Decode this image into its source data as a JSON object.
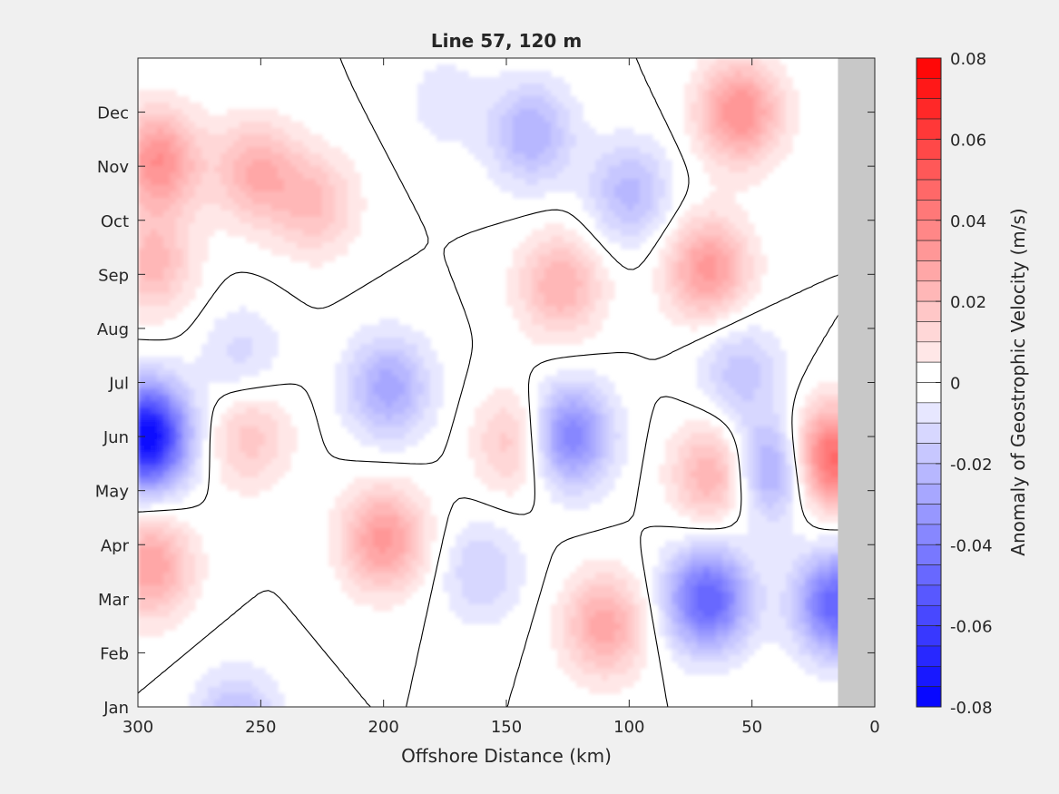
{
  "chart_data": {
    "type": "heatmap",
    "subtype": "filled-contour",
    "title": "Line 57, 120 m",
    "xlabel": "Offshore Distance (km)",
    "ylabel": "",
    "x_axis": {
      "reversed": true,
      "xlim": [
        300,
        0
      ],
      "ticks": [
        300,
        250,
        200,
        150,
        100,
        50,
        0
      ],
      "tick_labels": [
        "300",
        "250",
        "200",
        "150",
        "100",
        "50",
        "0"
      ]
    },
    "y_axis": {
      "ticks": [
        0,
        1,
        2,
        3,
        4,
        5,
        6,
        7,
        8,
        9,
        10,
        11
      ],
      "tick_labels": [
        "Jan",
        "Feb",
        "Mar",
        "Apr",
        "May",
        "Jun",
        "Jul",
        "Aug",
        "Sep",
        "Oct",
        "Nov",
        "Dec"
      ]
    },
    "no_data_region": {
      "x_range_km": [
        0,
        15
      ],
      "color": "#c8c8c8"
    },
    "zero_contour_color": "#000000",
    "colorbar": {
      "label": "Anomaly of Geostrophic Velocity (m/s)",
      "clim": [
        -0.08,
        0.08
      ],
      "levels": 32,
      "ticks": [
        0.08,
        0.06,
        0.04,
        0.02,
        0,
        -0.02,
        -0.04,
        -0.06,
        -0.08
      ],
      "tick_labels": [
        "0.08",
        "0.06",
        "0.04",
        "0.02",
        "0",
        "-0.02",
        "-0.04",
        "-0.06",
        "-0.08"
      ],
      "positive_color": "#ff0000",
      "negative_color": "#0000ff",
      "neutral_color": "#ffffff"
    },
    "features": [
      {
        "x_km": 292,
        "month": 10.1,
        "value": 0.035
      },
      {
        "x_km": 294,
        "month": 8.2,
        "value": 0.022
      },
      {
        "x_km": 295,
        "month": 2.6,
        "value": 0.03
      },
      {
        "x_km": 297,
        "month": 5.0,
        "value": -0.08
      },
      {
        "x_km": 258,
        "month": 6.5,
        "value": -0.012
      },
      {
        "x_km": 252,
        "month": 9.9,
        "value": 0.025
      },
      {
        "x_km": 228,
        "month": 9.3,
        "value": 0.02
      },
      {
        "x_km": 255,
        "month": 5.0,
        "value": 0.018
      },
      {
        "x_km": 198,
        "month": 5.9,
        "value": -0.028
      },
      {
        "x_km": 200,
        "month": 3.1,
        "value": 0.032
      },
      {
        "x_km": 175,
        "month": 11.2,
        "value": -0.008
      },
      {
        "x_km": 260,
        "month": -0.3,
        "value": -0.022
      },
      {
        "x_km": 145,
        "month": 4.9,
        "value": 0.022
      },
      {
        "x_km": 160,
        "month": 2.5,
        "value": -0.015
      },
      {
        "x_km": 125,
        "month": 5.0,
        "value": -0.042
      },
      {
        "x_km": 128,
        "month": 7.8,
        "value": 0.025
      },
      {
        "x_km": 140,
        "month": 10.6,
        "value": -0.025
      },
      {
        "x_km": 100,
        "month": 9.5,
        "value": -0.022
      },
      {
        "x_km": 110,
        "month": 1.5,
        "value": 0.028
      },
      {
        "x_km": 68,
        "month": 8.1,
        "value": 0.032
      },
      {
        "x_km": 68,
        "month": 2.0,
        "value": -0.05
      },
      {
        "x_km": 65,
        "month": 4.3,
        "value": 0.028
      },
      {
        "x_km": 55,
        "month": 11.0,
        "value": 0.035
      },
      {
        "x_km": 42,
        "month": 4.4,
        "value": -0.035
      },
      {
        "x_km": 55,
        "month": 6.2,
        "value": -0.018
      },
      {
        "x_km": 18,
        "month": 4.6,
        "value": 0.05
      },
      {
        "x_km": 15,
        "month": 1.9,
        "value": -0.05
      }
    ]
  }
}
